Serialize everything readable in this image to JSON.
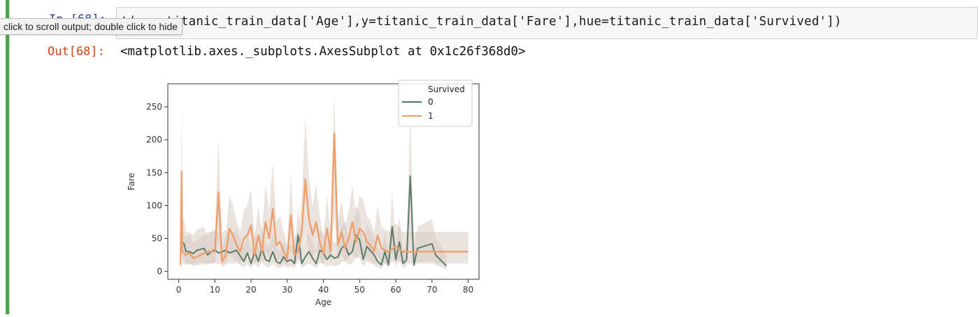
{
  "cell": {
    "in_prompt": "In [68]:",
    "code_visible": "t(x = titanic_train_data['Age'],y=titanic_train_data['Fare'],hue=titanic_train_data['Survived'])",
    "tooltip": "click to scroll output; double click to hide",
    "out_prompt": "Out[68]:",
    "output_text": "<matplotlib.axes._subplots.AxesSubplot at 0x1c26f368d0>"
  },
  "chart_data": {
    "type": "line",
    "xlabel": "Age",
    "ylabel": "Fare",
    "xlim": [
      -3,
      83
    ],
    "ylim": [
      -12,
      285
    ],
    "xticks": [
      0,
      10,
      20,
      30,
      40,
      50,
      60,
      70,
      80
    ],
    "yticks": [
      0,
      50,
      100,
      150,
      200,
      250
    ],
    "legend_title": "Survived",
    "legend_position": "top-right",
    "series": [
      {
        "name": "0",
        "color": "#5b7c6d",
        "x": [
          1,
          1.5,
          2,
          3,
          4,
          5,
          7,
          8,
          9,
          10,
          11,
          13,
          14,
          16,
          18,
          19,
          20,
          21,
          22,
          23,
          24,
          25,
          26,
          27,
          28,
          29,
          30,
          31,
          32,
          33,
          34,
          35,
          36,
          37,
          38,
          39,
          40,
          41,
          42,
          43,
          44,
          45,
          46,
          47,
          48,
          49,
          50,
          51,
          52,
          54,
          55,
          56,
          57,
          58,
          59,
          60,
          61,
          62,
          63,
          64,
          65,
          66,
          70,
          71,
          74
        ],
        "values": [
          44,
          42,
          30,
          30,
          27,
          32,
          35,
          25,
          30,
          33,
          28,
          32,
          28,
          32,
          15,
          28,
          12,
          30,
          15,
          35,
          18,
          15,
          30,
          15,
          12,
          22,
          15,
          18,
          12,
          55,
          12,
          22,
          30,
          20,
          12,
          32,
          28,
          18,
          25,
          20,
          22,
          35,
          40,
          25,
          30,
          55,
          48,
          18,
          38,
          25,
          15,
          10,
          30,
          10,
          68,
          18,
          45,
          12,
          18,
          145,
          10,
          35,
          42,
          25,
          8
        ]
      },
      {
        "name": "1",
        "color": "#ef9f6b",
        "x": [
          0.5,
          0.8,
          1,
          2,
          3,
          4,
          5,
          6,
          8,
          10,
          11,
          12,
          13,
          14,
          15,
          16,
          17,
          18,
          19,
          20,
          21,
          22,
          23,
          24,
          25,
          26,
          27,
          28,
          29,
          30,
          31,
          32,
          33,
          34,
          35,
          36,
          37,
          38,
          39,
          40,
          41,
          42,
          43,
          44,
          45,
          46,
          47,
          48,
          49,
          50,
          51,
          52,
          53,
          54,
          55,
          56,
          58,
          60,
          62,
          80
        ],
        "values": [
          10,
          152,
          30,
          25,
          28,
          20,
          22,
          25,
          30,
          30,
          120,
          15,
          25,
          65,
          55,
          40,
          30,
          50,
          55,
          70,
          25,
          55,
          30,
          75,
          50,
          95,
          40,
          45,
          30,
          20,
          85,
          25,
          30,
          60,
          140,
          80,
          55,
          75,
          45,
          25,
          65,
          30,
          210,
          40,
          60,
          35,
          50,
          75,
          45,
          65,
          60,
          45,
          40,
          30,
          55,
          35,
          30,
          38,
          30,
          30
        ]
      }
    ],
    "band_color": "#d9ccc2"
  }
}
